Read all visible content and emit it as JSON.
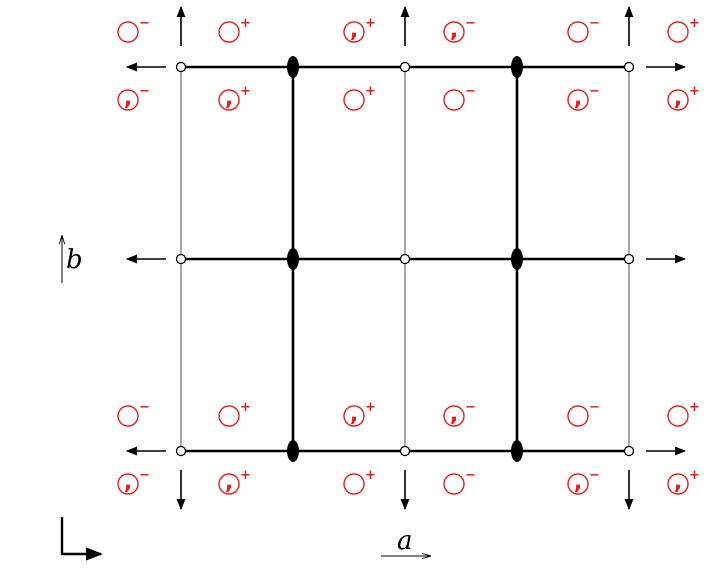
{
  "axes": {
    "a_label": "a",
    "b_label": "b"
  },
  "symbols": {
    "plus": "+",
    "minus": "−",
    "comma": ","
  },
  "colors": {
    "motif": "#e02020",
    "lines": "#000000",
    "thin_lines": "#777777"
  },
  "motifs": [
    {
      "row": "top-upper",
      "col": 1,
      "comma": false,
      "sign": "−"
    },
    {
      "row": "top-upper",
      "col": 2,
      "comma": false,
      "sign": "+"
    },
    {
      "row": "top-upper",
      "col": 3,
      "comma": true,
      "sign": "+"
    },
    {
      "row": "top-upper",
      "col": 4,
      "comma": true,
      "sign": "−"
    },
    {
      "row": "top-upper",
      "col": 5,
      "comma": false,
      "sign": "−"
    },
    {
      "row": "top-upper",
      "col": 6,
      "comma": false,
      "sign": "+"
    },
    {
      "row": "top-lower",
      "col": 1,
      "comma": true,
      "sign": "−"
    },
    {
      "row": "top-lower",
      "col": 2,
      "comma": true,
      "sign": "+"
    },
    {
      "row": "top-lower",
      "col": 3,
      "comma": false,
      "sign": "+"
    },
    {
      "row": "top-lower",
      "col": 4,
      "comma": false,
      "sign": "−"
    },
    {
      "row": "top-lower",
      "col": 5,
      "comma": true,
      "sign": "−"
    },
    {
      "row": "top-lower",
      "col": 6,
      "comma": true,
      "sign": "+"
    },
    {
      "row": "bottom-upper",
      "col": 1,
      "comma": false,
      "sign": "−"
    },
    {
      "row": "bottom-upper",
      "col": 2,
      "comma": false,
      "sign": "+"
    },
    {
      "row": "bottom-upper",
      "col": 3,
      "comma": true,
      "sign": "+"
    },
    {
      "row": "bottom-upper",
      "col": 4,
      "comma": true,
      "sign": "−"
    },
    {
      "row": "bottom-upper",
      "col": 5,
      "comma": false,
      "sign": "−"
    },
    {
      "row": "bottom-upper",
      "col": 6,
      "comma": false,
      "sign": "+"
    },
    {
      "row": "bottom-lower",
      "col": 1,
      "comma": true,
      "sign": "−"
    },
    {
      "row": "bottom-lower",
      "col": 2,
      "comma": true,
      "sign": "+"
    },
    {
      "row": "bottom-lower",
      "col": 3,
      "comma": false,
      "sign": "+"
    },
    {
      "row": "bottom-lower",
      "col": 4,
      "comma": false,
      "sign": "−"
    },
    {
      "row": "bottom-lower",
      "col": 5,
      "comma": true,
      "sign": "−"
    },
    {
      "row": "bottom-lower",
      "col": 6,
      "comma": true,
      "sign": "+"
    }
  ]
}
